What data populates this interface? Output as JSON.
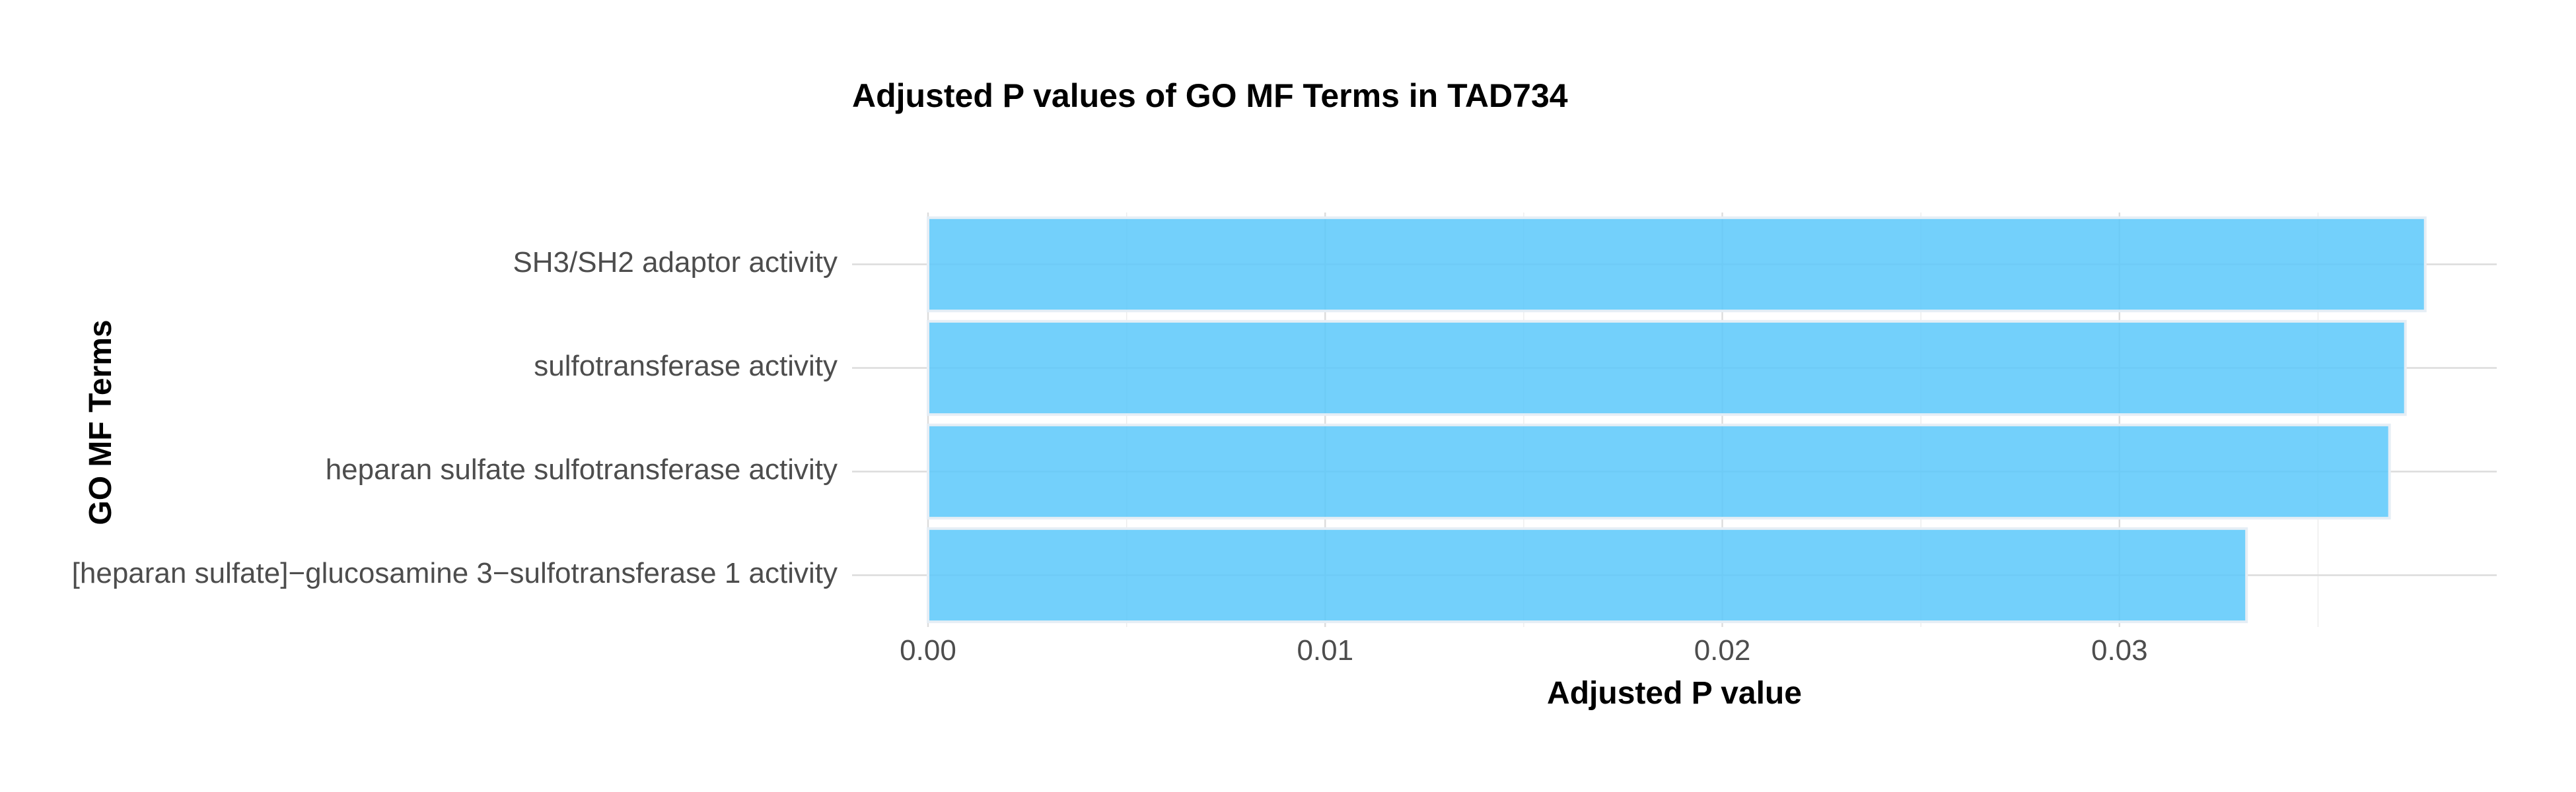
{
  "chart_data": {
    "type": "bar",
    "orientation": "horizontal",
    "title": "Adjusted P values of GO MF Terms in TAD734",
    "xlabel": "Adjusted P value",
    "ylabel": "GO MF Terms",
    "categories": [
      "[heparan sulfate]−glucosamine 3−sulfotransferase 1 activity",
      "heparan sulfate sulfotransferase activity",
      "sulfotransferase activity",
      "SH3/SH2 adaptor activity"
    ],
    "values": [
      0.0332,
      0.0368,
      0.0372,
      0.0377
    ],
    "xlim": [
      0,
      0.0395
    ],
    "xticks": [
      0,
      0.01,
      0.02,
      0.03
    ],
    "xtick_labels": [
      "0.00",
      "0.01",
      "0.02",
      "0.03"
    ],
    "bar_color": "#5ac8fa",
    "bar_border_color": "#e6eef5",
    "grid": true,
    "legend": "none"
  }
}
